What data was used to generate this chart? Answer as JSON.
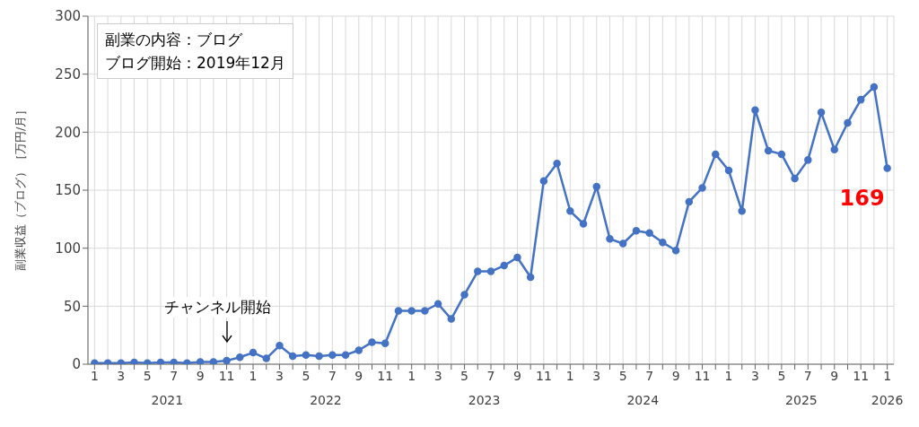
{
  "chart_data": {
    "type": "line",
    "ylabel": "副業収益（ブログ）［万円/月］",
    "categories": [
      "1",
      null,
      "3",
      null,
      "5",
      null,
      "7",
      null,
      "9",
      null,
      "11",
      null,
      "1",
      null,
      "3",
      null,
      "5",
      null,
      "7",
      null,
      "9",
      null,
      "11",
      null,
      "1",
      null,
      "3",
      null,
      "5",
      null,
      "7",
      null,
      "9",
      null,
      "11",
      null,
      "1",
      null,
      "3",
      null,
      "5",
      null,
      "7",
      null,
      "9",
      null,
      "11",
      null,
      "1",
      null,
      "3",
      null,
      "5",
      null,
      "7",
      null,
      "9",
      null,
      "11",
      null,
      "1"
    ],
    "series": [
      {
        "color": "#4472c4",
        "values": [
          1,
          1,
          1,
          1.5,
          1,
          1.5,
          1.5,
          1,
          2,
          2,
          3,
          6,
          10,
          5,
          16,
          7,
          8,
          7,
          8,
          8,
          12,
          19,
          18,
          46,
          46,
          46,
          52,
          39,
          60,
          80,
          80,
          85,
          92,
          75,
          158,
          173,
          132,
          121,
          153,
          108,
          104,
          115,
          113,
          105,
          98,
          140,
          152,
          181,
          167,
          132,
          219,
          184,
          181,
          160,
          176,
          217,
          185,
          208,
          228,
          239,
          169
        ],
        "value_labels": [
          null,
          null,
          null,
          null,
          null,
          null,
          null,
          null,
          null,
          null,
          null,
          null,
          null,
          null,
          null,
          null,
          null,
          null,
          null,
          null,
          null,
          null,
          null,
          null,
          null,
          null,
          null,
          null,
          null,
          null,
          null,
          null,
          null,
          null,
          null,
          null,
          null,
          null,
          null,
          null,
          null,
          null,
          null,
          null,
          null,
          null,
          null,
          null,
          null,
          null,
          null,
          null,
          null,
          null,
          null,
          null,
          null,
          null,
          null,
          null,
          "169"
        ]
      }
    ],
    "ylim": [
      0,
      300
    ],
    "yticks": [
      0,
      50,
      100,
      150,
      200,
      250,
      300
    ],
    "grid": true,
    "marker": "circle",
    "line_style": "solid",
    "annotations": [
      "副業の内容：ブログ",
      "ブログ開始：2019年12月",
      "チャンネル開始",
      "2021",
      "2022",
      "2023",
      "2024",
      "2025",
      "2026"
    ]
  }
}
